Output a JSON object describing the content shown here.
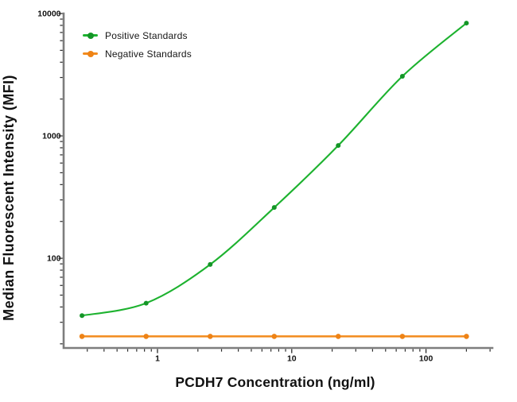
{
  "figure": {
    "background": "#ffffff"
  },
  "chart_data": {
    "type": "line",
    "scale": "log-log",
    "title": "",
    "xlabel": "PCDH7 Concentration (ng/ml)",
    "ylabel": "Median Fluorescent Intensity (MFI)",
    "x": [
      0.274,
      0.823,
      2.47,
      7.41,
      22.2,
      66.7,
      200
    ],
    "series": [
      {
        "name": "Positive Standards",
        "color": "#1db22f",
        "marker_color": "#149527",
        "curve": "smooth",
        "values": [
          34,
          43,
          89,
          260,
          835,
          3070,
          8350
        ]
      },
      {
        "name": "Negative Standards",
        "color": "#f28b1d",
        "marker_color": "#ee8316",
        "curve": "straight",
        "values": [
          23,
          23,
          23,
          23,
          23,
          23,
          23
        ]
      }
    ],
    "xlim": [
      0.2,
      312
    ],
    "ylim": [
      18.5,
      10000
    ],
    "x_ticks": {
      "values": [
        1,
        10,
        100
      ],
      "labels": [
        "1",
        "10",
        "100"
      ]
    },
    "y_ticks": {
      "values": [
        100,
        1000,
        10000
      ],
      "labels": [
        "100",
        "1000",
        "10000"
      ]
    },
    "minor_log_ticks": true,
    "grid": false,
    "legend_position": "top-left-inside",
    "axis_color": "#7d7d7d",
    "tick_color": "#2b2b2b",
    "text_color": "#111111"
  }
}
